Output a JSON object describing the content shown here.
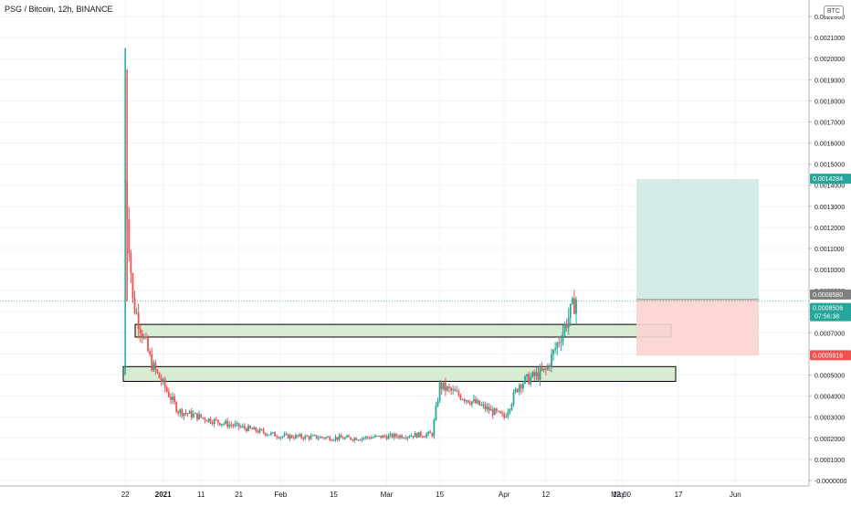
{
  "header": {
    "title": "PSG / Bitcoin, 12h, BINANCE",
    "currency": "BTC"
  },
  "colors": {
    "up": "#26a69a",
    "down": "#ef5350",
    "zone_fill": "#d7ecd2",
    "target_fill": "#cfeae4",
    "stop_fill": "#fbd4d0",
    "axis_text": "#131722",
    "grid": "#f0f3fa"
  },
  "price_labels": [
    {
      "value": "0.0014284",
      "color": "#26a69a"
    },
    {
      "value": "0.0008580",
      "color": "#7f7f7f"
    },
    {
      "value": "0.0008506",
      "color": "#26a69a",
      "sub": "07:56:38"
    },
    {
      "value": "0.0005916",
      "color": "#ef5350"
    }
  ],
  "chart_data": {
    "type": "candlestick",
    "title": "PSG / Bitcoin, 12h, BINANCE",
    "xlabel": "",
    "ylabel": "",
    "ylim": [
      0,
      0.0022
    ],
    "y_ticks": [
      "0.0022000",
      "0.0021000",
      "0.0020000",
      "0.0019000",
      "0.0018000",
      "0.0017000",
      "0.0016000",
      "0.0015000",
      "0.0014000",
      "0.0013000",
      "0.0012000",
      "0.0011000",
      "0.0010000",
      "0.0009000",
      "0.0008000",
      "0.0007000",
      "0.0006000",
      "0.0005000",
      "0.0004000",
      "0.0003000",
      "0.0002000",
      "0.0001000",
      "-0.0000000"
    ],
    "x_ticks": [
      "22",
      "2021",
      "11",
      "21",
      "Feb",
      "15",
      "Mar",
      "15",
      "Apr",
      "12",
      "12:00",
      "May",
      "17",
      "Jun"
    ],
    "last_price": 0.0008506,
    "zones": [
      {
        "name": "resistance",
        "low": 0.00068,
        "high": 0.00074
      },
      {
        "name": "support",
        "low": 0.00047,
        "high": 0.00054
      }
    ],
    "position": {
      "entry": 0.000858,
      "target": 0.0014284,
      "stop": 0.0005916
    },
    "trend_keypoints": [
      {
        "date": "2020-12-22",
        "close": 0.00142
      },
      {
        "date": "2020-12-24",
        "close": 0.00085
      },
      {
        "date": "2020-12-29",
        "close": 0.00055
      },
      {
        "date": "2021-01-05",
        "close": 0.00033
      },
      {
        "date": "2021-01-15",
        "close": 0.00028
      },
      {
        "date": "2021-02-01",
        "close": 0.00021
      },
      {
        "date": "2021-02-20",
        "close": 0.0002
      },
      {
        "date": "2021-03-13",
        "close": 0.00022
      },
      {
        "date": "2021-03-15",
        "close": 0.00045
      },
      {
        "date": "2021-04-01",
        "close": 0.0003
      },
      {
        "date": "2021-04-05",
        "close": 0.00046
      },
      {
        "date": "2021-04-12",
        "close": 0.00052
      },
      {
        "date": "2021-04-20",
        "close": 0.00086
      }
    ]
  }
}
